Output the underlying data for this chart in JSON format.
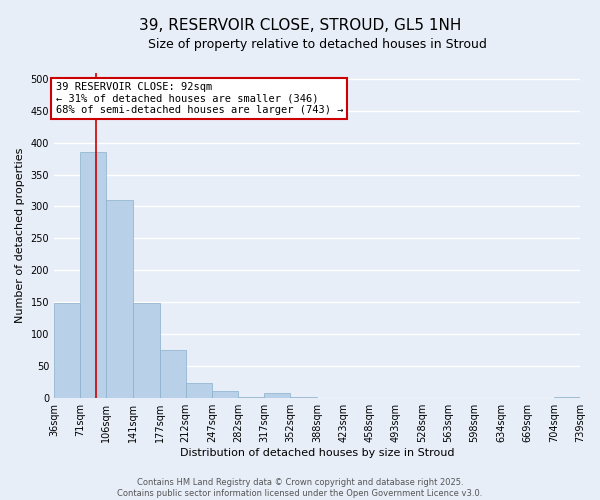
{
  "title": "39, RESERVOIR CLOSE, STROUD, GL5 1NH",
  "subtitle": "Size of property relative to detached houses in Stroud",
  "xlabel": "Distribution of detached houses by size in Stroud",
  "ylabel": "Number of detached properties",
  "bin_edges": [
    36,
    71,
    106,
    141,
    177,
    212,
    247,
    282,
    317,
    352,
    388,
    423,
    458,
    493,
    528,
    563,
    598,
    634,
    669,
    704,
    739
  ],
  "bar_heights": [
    148,
    385,
    310,
    148,
    75,
    23,
    10,
    1,
    8,
    1,
    0,
    0,
    0,
    0,
    0,
    0,
    0,
    0,
    0,
    1
  ],
  "bar_color": "#b8d0e8",
  "bar_edge_color": "#8ab0cc",
  "property_size": 92,
  "red_line_color": "#cc0000",
  "annotation_text": "39 RESERVOIR CLOSE: 92sqm\n← 31% of detached houses are smaller (346)\n68% of semi-detached houses are larger (743) →",
  "annotation_box_color": "#ffffff",
  "annotation_box_edge_color": "#cc0000",
  "ylim": [
    0,
    510
  ],
  "yticks": [
    0,
    50,
    100,
    150,
    200,
    250,
    300,
    350,
    400,
    450,
    500
  ],
  "footer_line1": "Contains HM Land Registry data © Crown copyright and database right 2025.",
  "footer_line2": "Contains public sector information licensed under the Open Government Licence v3.0.",
  "bg_color": "#e8eef8",
  "grid_color": "#ffffff",
  "title_fontsize": 11,
  "subtitle_fontsize": 9,
  "axis_label_fontsize": 8,
  "tick_fontsize": 7,
  "annotation_fontsize": 7.5,
  "footer_fontsize": 6
}
